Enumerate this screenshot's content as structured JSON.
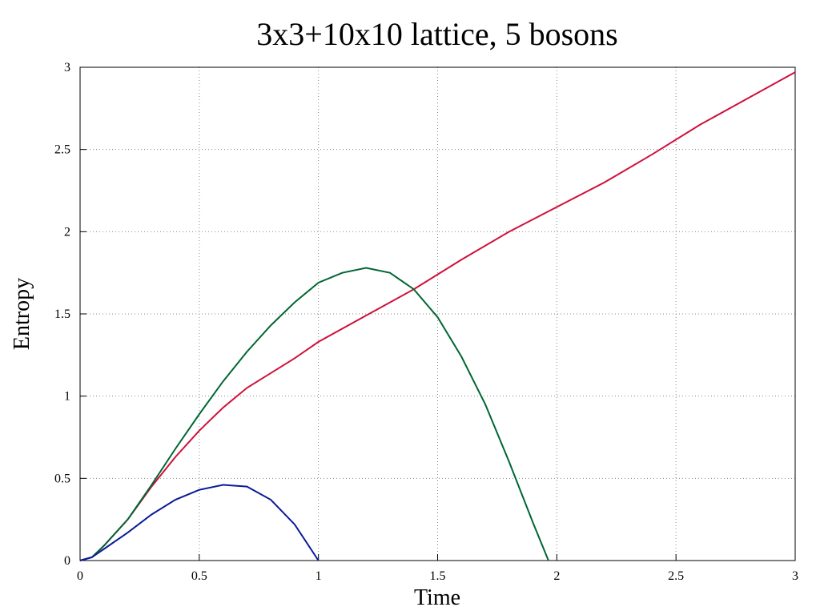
{
  "chart_data": {
    "type": "line",
    "title": "3x3+10x10 lattice, 5 bosons",
    "x_label": "Time",
    "y_label": "Entropy",
    "xlim": [
      0,
      3
    ],
    "ylim": [
      0,
      3
    ],
    "xticks": [
      0,
      0.5,
      1,
      1.5,
      2,
      2.5,
      3
    ],
    "yticks": [
      0,
      0.5,
      1,
      1.5,
      2,
      2.5,
      3
    ],
    "grid": true,
    "series": [
      {
        "color": "#d0103a",
        "x": [
          0,
          0.05,
          0.1,
          0.2,
          0.3,
          0.4,
          0.5,
          0.6,
          0.7,
          0.8,
          0.9,
          1.0,
          1.2,
          1.4,
          1.6,
          1.8,
          2.0,
          2.2,
          2.4,
          2.6,
          2.8,
          3.0
        ],
        "values": [
          0,
          0.02,
          0.09,
          0.25,
          0.45,
          0.63,
          0.79,
          0.93,
          1.05,
          1.14,
          1.23,
          1.33,
          1.49,
          1.65,
          1.83,
          2.0,
          2.15,
          2.3,
          2.47,
          2.65,
          2.81,
          2.97
        ]
      },
      {
        "color": "#006633",
        "x": [
          0,
          0.05,
          0.1,
          0.2,
          0.3,
          0.4,
          0.5,
          0.6,
          0.7,
          0.8,
          0.9,
          1.0,
          1.1,
          1.2,
          1.3,
          1.4,
          1.5,
          1.6,
          1.7,
          1.8,
          1.9,
          1.965
        ],
        "values": [
          0,
          0.02,
          0.09,
          0.25,
          0.46,
          0.68,
          0.89,
          1.09,
          1.27,
          1.43,
          1.57,
          1.69,
          1.75,
          1.78,
          1.75,
          1.65,
          1.48,
          1.24,
          0.95,
          0.6,
          0.23,
          0
        ]
      },
      {
        "color": "#0a1a9a",
        "x": [
          0,
          0.05,
          0.1,
          0.2,
          0.3,
          0.4,
          0.5,
          0.6,
          0.7,
          0.8,
          0.9,
          1.0
        ],
        "values": [
          0,
          0.02,
          0.07,
          0.17,
          0.28,
          0.37,
          0.43,
          0.46,
          0.45,
          0.37,
          0.22,
          0
        ]
      }
    ]
  }
}
